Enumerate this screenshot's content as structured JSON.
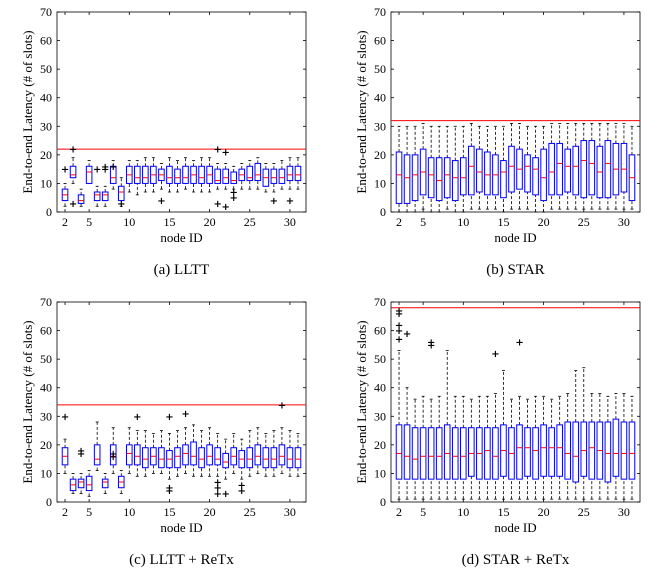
{
  "chart_data": [
    {
      "type": "box",
      "caption": "(a) LLTT",
      "xlabel": "node ID",
      "ylabel": "End-to-end Latency (# of slots)",
      "xlim": [
        1,
        32
      ],
      "ylim": [
        0,
        70
      ],
      "xticks": [
        2,
        5,
        10,
        15,
        20,
        25,
        30
      ],
      "yticks": [
        0,
        10,
        20,
        30,
        40,
        50,
        60,
        70
      ],
      "box_color": "#0000ff",
      "median_color": "#ff0000",
      "outlier_color": "#ff0000",
      "reference_line": 22,
      "reference_color": "#ff0000",
      "x": [
        2,
        3,
        4,
        5,
        6,
        7,
        8,
        9,
        10,
        11,
        12,
        13,
        14,
        15,
        16,
        17,
        18,
        19,
        20,
        21,
        22,
        23,
        24,
        25,
        26,
        27,
        28,
        29,
        30,
        31
      ],
      "boxes": [
        [
          2,
          4,
          6,
          8,
          10
        ],
        [
          10,
          12,
          13,
          16,
          19
        ],
        [
          2,
          3,
          4,
          6,
          8
        ],
        [
          10,
          10,
          14,
          16,
          18
        ],
        [
          2,
          4,
          6,
          7,
          9
        ],
        [
          2,
          4,
          6,
          7,
          9
        ],
        [
          8,
          10,
          12,
          16,
          18
        ],
        [
          2,
          4,
          7,
          9,
          12
        ],
        [
          7,
          10,
          13,
          16,
          18
        ],
        [
          6,
          10,
          12,
          16,
          18
        ],
        [
          7,
          10,
          12,
          16,
          19
        ],
        [
          7,
          10,
          13,
          16,
          19
        ],
        [
          8,
          11,
          13,
          15,
          17
        ],
        [
          7,
          10,
          12,
          16,
          19
        ],
        [
          7,
          10,
          12,
          15,
          18
        ],
        [
          8,
          10,
          12,
          16,
          19
        ],
        [
          7,
          10,
          13,
          16,
          18
        ],
        [
          7,
          10,
          12,
          16,
          19
        ],
        [
          7,
          10,
          13,
          16,
          19
        ],
        [
          8,
          10,
          11,
          15,
          17
        ],
        [
          8,
          10,
          12,
          15,
          17
        ],
        [
          8,
          10,
          11,
          14,
          16
        ],
        [
          8,
          11,
          13,
          15,
          17
        ],
        [
          8,
          11,
          12,
          16,
          18
        ],
        [
          8,
          11,
          13,
          17,
          19
        ],
        [
          7,
          9,
          12,
          15,
          17
        ],
        [
          7,
          10,
          12,
          15,
          17
        ],
        [
          8,
          10,
          12,
          15,
          18
        ],
        [
          8,
          11,
          13,
          16,
          19
        ],
        [
          8,
          11,
          13,
          16,
          19
        ]
      ],
      "outliers": [
        [
          2,
          15
        ],
        [
          3,
          3
        ],
        [
          3,
          22
        ],
        [
          6,
          15
        ],
        [
          7,
          15
        ],
        [
          7,
          16
        ],
        [
          8,
          16
        ],
        [
          9,
          3
        ],
        [
          14,
          4
        ],
        [
          21,
          3
        ],
        [
          21,
          22
        ],
        [
          22,
          2
        ],
        [
          22,
          21
        ],
        [
          23,
          5
        ],
        [
          23,
          7
        ],
        [
          28,
          4
        ],
        [
          30,
          4
        ]
      ]
    },
    {
      "type": "box",
      "caption": "(b) STAR",
      "xlabel": "node ID",
      "ylabel": "End-to-end Latency (# of slots)",
      "xlim": [
        1,
        32
      ],
      "ylim": [
        0,
        70
      ],
      "xticks": [
        2,
        5,
        10,
        15,
        20,
        25,
        30
      ],
      "yticks": [
        0,
        10,
        20,
        30,
        40,
        50,
        60,
        70
      ],
      "box_color": "#0000ff",
      "median_color": "#ff0000",
      "outlier_color": "#ff0000",
      "reference_line": 32,
      "reference_color": "#ff0000",
      "x": [
        2,
        3,
        4,
        5,
        6,
        7,
        8,
        9,
        10,
        11,
        12,
        13,
        14,
        15,
        16,
        17,
        18,
        19,
        20,
        21,
        22,
        23,
        24,
        25,
        26,
        27,
        28,
        29,
        30,
        31
      ],
      "boxes": [
        [
          0,
          3,
          13,
          21,
          30
        ],
        [
          0,
          3,
          12,
          20,
          30
        ],
        [
          0,
          4,
          13,
          20,
          30
        ],
        [
          1,
          6,
          14,
          22,
          31
        ],
        [
          0,
          5,
          13,
          19,
          30
        ],
        [
          0,
          4,
          11,
          19,
          30
        ],
        [
          1,
          5,
          13,
          19,
          30
        ],
        [
          0,
          4,
          12,
          18,
          30
        ],
        [
          0,
          6,
          12,
          19,
          30
        ],
        [
          1,
          6,
          16,
          23,
          31
        ],
        [
          1,
          7,
          14,
          22,
          30
        ],
        [
          1,
          6,
          13,
          21,
          30
        ],
        [
          1,
          6,
          13,
          20,
          30
        ],
        [
          0,
          5,
          14,
          18,
          30
        ],
        [
          1,
          7,
          16,
          23,
          31
        ],
        [
          1,
          8,
          15,
          22,
          31
        ],
        [
          1,
          7,
          16,
          20,
          30
        ],
        [
          0,
          6,
          15,
          19,
          30
        ],
        [
          0,
          4,
          12,
          22,
          30
        ],
        [
          1,
          6,
          14,
          24,
          31
        ],
        [
          1,
          6,
          17,
          24,
          31
        ],
        [
          1,
          7,
          16,
          22,
          31
        ],
        [
          1,
          6,
          16,
          23,
          31
        ],
        [
          1,
          5,
          18,
          25,
          31
        ],
        [
          1,
          6,
          17,
          25,
          31
        ],
        [
          1,
          5,
          14,
          23,
          31
        ],
        [
          1,
          5,
          17,
          25,
          31
        ],
        [
          1,
          6,
          15,
          24,
          31
        ],
        [
          1,
          7,
          15,
          24,
          31
        ],
        [
          1,
          4,
          12,
          20,
          30
        ]
      ],
      "outliers": []
    },
    {
      "type": "box",
      "caption": "(c) LLTT + ReTx",
      "xlabel": "node ID",
      "ylabel": "End-to-end Latency (# of slots)",
      "xlim": [
        1,
        32
      ],
      "ylim": [
        0,
        70
      ],
      "xticks": [
        2,
        5,
        10,
        15,
        20,
        25,
        30
      ],
      "yticks": [
        0,
        10,
        20,
        30,
        40,
        50,
        60,
        70
      ],
      "box_color": "#0000ff",
      "median_color": "#ff0000",
      "outlier_color": "#ff0000",
      "reference_line": 34,
      "reference_color": "#ff0000",
      "x": [
        2,
        3,
        4,
        5,
        6,
        7,
        8,
        9,
        10,
        11,
        12,
        13,
        14,
        15,
        16,
        17,
        18,
        19,
        20,
        21,
        22,
        23,
        24,
        25,
        26,
        27,
        28,
        29,
        30,
        31
      ],
      "boxes": [
        [
          10,
          13,
          16,
          19,
          22
        ],
        [
          3,
          4,
          6,
          8,
          10
        ],
        [
          3,
          5,
          7,
          8,
          10
        ],
        [
          2,
          4,
          6,
          9,
          11
        ],
        [
          11,
          13,
          15,
          20,
          28
        ],
        [
          3,
          5,
          7,
          8,
          10
        ],
        [
          10,
          13,
          16,
          20,
          26
        ],
        [
          3,
          5,
          7,
          9,
          11
        ],
        [
          10,
          13,
          17,
          20,
          26
        ],
        [
          9,
          13,
          16,
          20,
          25
        ],
        [
          9,
          12,
          15,
          19,
          25
        ],
        [
          10,
          13,
          16,
          19,
          24
        ],
        [
          10,
          12,
          15,
          19,
          25
        ],
        [
          8,
          12,
          15,
          18,
          24
        ],
        [
          9,
          12,
          16,
          19,
          25
        ],
        [
          10,
          13,
          17,
          20,
          26
        ],
        [
          9,
          13,
          16,
          21,
          27
        ],
        [
          9,
          12,
          15,
          19,
          25
        ],
        [
          9,
          13,
          16,
          20,
          26
        ],
        [
          9,
          13,
          15,
          19,
          24
        ],
        [
          8,
          12,
          14,
          17,
          22
        ],
        [
          10,
          13,
          16,
          19,
          24
        ],
        [
          8,
          12,
          15,
          18,
          22
        ],
        [
          9,
          12,
          15,
          19,
          25
        ],
        [
          10,
          13,
          16,
          20,
          26
        ],
        [
          9,
          12,
          15,
          19,
          24
        ],
        [
          9,
          12,
          15,
          19,
          25
        ],
        [
          10,
          13,
          16,
          20,
          26
        ],
        [
          9,
          12,
          15,
          19,
          25
        ],
        [
          9,
          12,
          15,
          19,
          24
        ]
      ],
      "outliers": [
        [
          2,
          30
        ],
        [
          4,
          17
        ],
        [
          4,
          18
        ],
        [
          8,
          16
        ],
        [
          8,
          17
        ],
        [
          11,
          30
        ],
        [
          15,
          4
        ],
        [
          15,
          5
        ],
        [
          15,
          30
        ],
        [
          17,
          31
        ],
        [
          21,
          3
        ],
        [
          21,
          5
        ],
        [
          21,
          7
        ],
        [
          22,
          3
        ],
        [
          24,
          4
        ],
        [
          24,
          6
        ],
        [
          29,
          34
        ]
      ]
    },
    {
      "type": "box",
      "caption": "(d) STAR + ReTx",
      "xlabel": "node ID",
      "ylabel": "End-to-end Latency (# of slots)",
      "xlim": [
        1,
        32
      ],
      "ylim": [
        0,
        70
      ],
      "xticks": [
        2,
        5,
        10,
        15,
        20,
        25,
        30
      ],
      "yticks": [
        0,
        10,
        20,
        30,
        40,
        50,
        60,
        70
      ],
      "box_color": "#0000ff",
      "median_color": "#ff0000",
      "outlier_color": "#ff0000",
      "reference_line": 68,
      "reference_color": "#ff0000",
      "x": [
        2,
        3,
        4,
        5,
        6,
        7,
        8,
        9,
        10,
        11,
        12,
        13,
        14,
        15,
        16,
        17,
        18,
        19,
        20,
        21,
        22,
        23,
        24,
        25,
        26,
        27,
        28,
        29,
        30,
        31
      ],
      "boxes": [
        [
          1,
          8,
          17,
          27,
          53
        ],
        [
          1,
          8,
          16,
          27,
          40
        ],
        [
          1,
          8,
          15,
          26,
          36
        ],
        [
          1,
          8,
          16,
          26,
          37
        ],
        [
          1,
          8,
          16,
          26,
          36
        ],
        [
          1,
          8,
          16,
          26,
          37
        ],
        [
          1,
          8,
          17,
          27,
          53
        ],
        [
          1,
          8,
          16,
          26,
          37
        ],
        [
          1,
          8,
          16,
          26,
          37
        ],
        [
          1,
          9,
          17,
          26,
          36
        ],
        [
          1,
          8,
          17,
          26,
          37
        ],
        [
          1,
          8,
          18,
          26,
          37
        ],
        [
          1,
          8,
          16,
          26,
          38
        ],
        [
          1,
          9,
          18,
          27,
          46
        ],
        [
          1,
          8,
          17,
          26,
          36
        ],
        [
          1,
          8,
          19,
          27,
          37
        ],
        [
          1,
          9,
          19,
          26,
          36
        ],
        [
          1,
          8,
          18,
          26,
          37
        ],
        [
          1,
          9,
          19,
          27,
          37
        ],
        [
          1,
          9,
          19,
          26,
          36
        ],
        [
          1,
          9,
          19,
          27,
          37
        ],
        [
          1,
          8,
          17,
          28,
          38
        ],
        [
          1,
          7,
          16,
          28,
          46
        ],
        [
          1,
          9,
          18,
          28,
          47
        ],
        [
          1,
          8,
          19,
          28,
          38
        ],
        [
          1,
          8,
          18,
          28,
          38
        ],
        [
          1,
          7,
          17,
          28,
          37
        ],
        [
          1,
          9,
          17,
          29,
          38
        ],
        [
          1,
          8,
          17,
          28,
          38
        ],
        [
          1,
          8,
          17,
          28,
          37
        ]
      ],
      "outliers": [
        [
          2,
          57
        ],
        [
          2,
          60
        ],
        [
          2,
          62
        ],
        [
          2,
          66
        ],
        [
          2,
          67
        ],
        [
          3,
          59
        ],
        [
          6,
          55
        ],
        [
          6,
          56
        ],
        [
          14,
          52
        ],
        [
          17,
          56
        ]
      ]
    }
  ]
}
